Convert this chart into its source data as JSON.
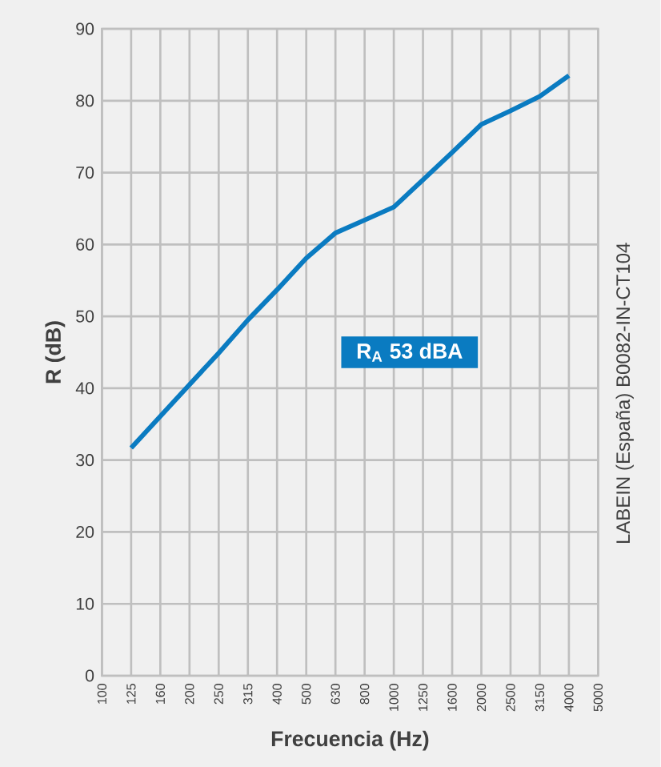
{
  "chart_data": {
    "type": "line",
    "xlabel": "Frecuencia (Hz)",
    "ylabel": "R (dB)",
    "categories": [
      "100",
      "125",
      "160",
      "200",
      "250",
      "315",
      "400",
      "500",
      "630",
      "800",
      "1000",
      "1250",
      "1600",
      "2000",
      "2500",
      "3150",
      "4000",
      "5000"
    ],
    "series": [
      {
        "color": "#0a7bc1",
        "values": [
          null,
          31.7,
          36.1,
          40.5,
          44.9,
          49.5,
          53.7,
          58.1,
          61.6,
          63.4,
          65.2,
          69.0,
          72.8,
          76.7,
          78.6,
          80.6,
          83.5,
          null
        ]
      }
    ],
    "ylim": [
      0,
      90
    ],
    "yticks": [
      0,
      10,
      20,
      30,
      40,
      50,
      60,
      70,
      80,
      90
    ],
    "grid": true,
    "marker": "none",
    "line_style": "solid",
    "annotations": [
      "R$_{A}$ 53 dBA",
      "LABEIN (España) B0082-IN-CT104"
    ]
  }
}
